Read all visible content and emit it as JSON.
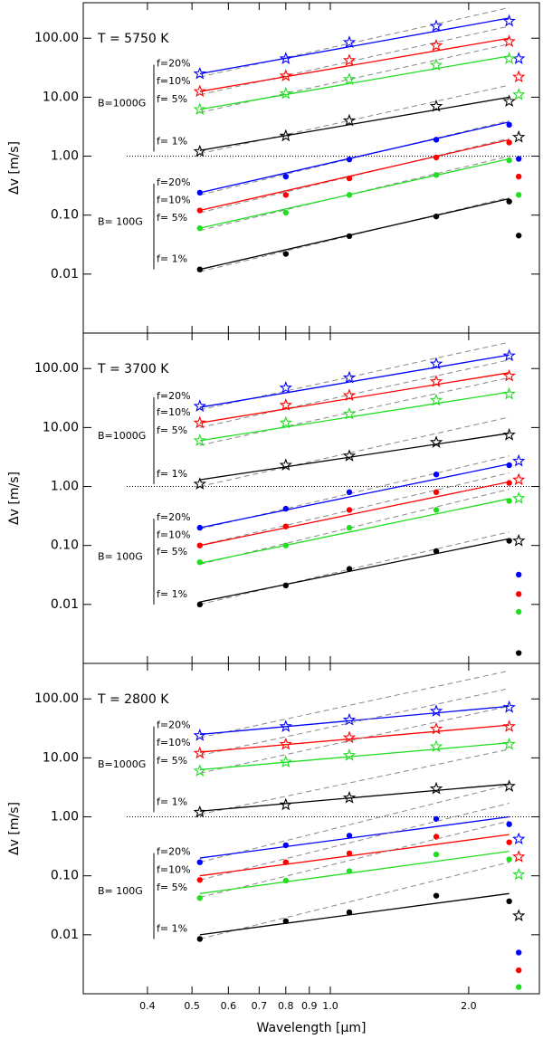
{
  "chart_data": [
    {
      "type": "line",
      "title": "T = 5750 K",
      "ylabel": "Δv [m/s]",
      "xscale": "log",
      "yscale": "log",
      "xlim": [
        0.29,
        2.85
      ],
      "ylim": [
        0.001,
        400
      ],
      "yticks": [
        0.01,
        {
          "value": 0.1,
          "label": "0.10"
        },
        {
          "value": 1,
          "label": "1.00"
        },
        {
          "value": 10,
          "label": "10.00"
        },
        {
          "value": 100,
          "label": "100.00"
        }
      ],
      "x": [
        0.52,
        0.8,
        1.1,
        1.7,
        2.45
      ],
      "extra_x": 2.57,
      "groups": [
        {
          "label": "B=1000G",
          "marker": "star",
          "series": [
            {
              "name": "f=20%",
              "color": "#0000ff",
              "values": [
                25,
                45,
                85,
                160,
                195
              ],
              "fit": [
                25,
                220
              ],
              "dashed": [
                22,
                330
              ],
              "extra": 45
            },
            {
              "name": "f=10%",
              "color": "#ff0000",
              "values": [
                12.5,
                23,
                42,
                75,
                88
              ],
              "fit": [
                12.5,
                100
              ],
              "dashed": [
                11,
                160
              ],
              "extra": 22
            },
            {
              "name": "f= 5%",
              "color": "#22dd22",
              "values": [
                6.2,
                11.5,
                20,
                35,
                45
              ],
              "fit": [
                6.2,
                50
              ],
              "dashed": [
                5.5,
                80
              ],
              "extra": 11
            },
            {
              "name": "f= 1%",
              "color": "#000000",
              "values": [
                1.2,
                2.2,
                4,
                7,
                8.5
              ],
              "fit": [
                1.25,
                10
              ],
              "dashed": [
                1.1,
                16
              ],
              "extra": 2.1
            }
          ]
        },
        {
          "label": "B= 100G",
          "marker": "dot",
          "series": [
            {
              "name": "f=20%",
              "color": "#0000ff",
              "values": [
                0.24,
                0.45,
                0.88,
                1.9,
                3.4
              ],
              "fit": [
                0.24,
                3.8
              ],
              "dashed": [
                0.22,
                4
              ],
              "extra": 0.9
            },
            {
              "name": "f=10%",
              "color": "#ff0000",
              "values": [
                0.12,
                0.22,
                0.42,
                0.95,
                1.7
              ],
              "fit": [
                0.12,
                1.9
              ],
              "dashed": [
                0.11,
                2
              ],
              "extra": 0.45
            },
            {
              "name": "f= 5%",
              "color": "#22dd22",
              "values": [
                0.06,
                0.11,
                0.22,
                0.48,
                0.85
              ],
              "fit": [
                0.06,
                0.9
              ],
              "dashed": [
                0.055,
                1
              ],
              "extra": 0.22
            },
            {
              "name": "f= 1%",
              "color": "#000000",
              "values": [
                0.012,
                0.022,
                0.044,
                0.095,
                0.17
              ],
              "fit": [
                0.012,
                0.19
              ],
              "dashed": [
                0.011,
                0.2
              ],
              "extra": 0.045
            }
          ]
        }
      ]
    },
    {
      "type": "line",
      "title": "T = 3700 K",
      "ylabel": "Δv [m/s]",
      "xscale": "log",
      "yscale": "log",
      "xlim": [
        0.29,
        2.85
      ],
      "ylim": [
        0.001,
        400
      ],
      "yticks": [
        0.01,
        {
          "value": 0.1,
          "label": "0.10"
        },
        {
          "value": 1,
          "label": "1.00"
        },
        {
          "value": 10,
          "label": "10.00"
        },
        {
          "value": 100,
          "label": "100.00"
        }
      ],
      "x": [
        0.52,
        0.8,
        1.1,
        1.7,
        2.45
      ],
      "extra_x": 2.57,
      "groups": [
        {
          "label": "B=1000G",
          "marker": "star",
          "series": [
            {
              "name": "f=20%",
              "color": "#0000ff",
              "values": [
                23,
                47,
                70,
                120,
                165
              ],
              "fit": [
                22,
                170
              ],
              "dashed": [
                20,
                280
              ],
              "extra": 2.7
            },
            {
              "name": "f=10%",
              "color": "#ff0000",
              "values": [
                12,
                24,
                35,
                60,
                75
              ],
              "fit": [
                12,
                85
              ],
              "dashed": [
                10,
                140
              ],
              "extra": 1.3
            },
            {
              "name": "f= 5%",
              "color": "#22dd22",
              "values": [
                6,
                12,
                17,
                29,
                37
              ],
              "fit": [
                6,
                40
              ],
              "dashed": [
                5,
                70
              ],
              "extra": 0.63
            },
            {
              "name": "f= 1%",
              "color": "#000000",
              "values": [
                1.1,
                2.3,
                3.3,
                5.6,
                7.5
              ],
              "fit": [
                1.3,
                8
              ],
              "dashed": [
                1,
                15
              ],
              "extra": 0.12
            }
          ]
        },
        {
          "label": "B= 100G",
          "marker": "dot",
          "series": [
            {
              "name": "f=20%",
              "color": "#0000ff",
              "values": [
                0.2,
                0.42,
                0.8,
                1.6,
                2.3
              ],
              "fit": [
                0.2,
                2.4
              ],
              "dashed": [
                0.19,
                3.3
              ],
              "extra": 0.032
            },
            {
              "name": "f=10%",
              "color": "#ff0000",
              "values": [
                0.1,
                0.21,
                0.4,
                0.8,
                1.15
              ],
              "fit": [
                0.1,
                1.2
              ],
              "dashed": [
                0.1,
                1.7
              ],
              "extra": 0.015
            },
            {
              "name": "f= 5%",
              "color": "#22dd22",
              "values": [
                0.052,
                0.1,
                0.2,
                0.4,
                0.57
              ],
              "fit": [
                0.05,
                0.62
              ],
              "dashed": [
                0.048,
                0.9
              ],
              "extra": 0.0075
            },
            {
              "name": "f= 1%",
              "color": "#000000",
              "values": [
                0.01,
                0.021,
                0.04,
                0.08,
                0.12
              ],
              "fit": [
                0.011,
                0.13
              ],
              "dashed": [
                0.01,
                0.17
              ],
              "extra": 0.0015
            }
          ]
        }
      ]
    },
    {
      "type": "line",
      "title": "T = 2800 K",
      "ylabel": "Δv [m/s]",
      "xlabel": "Wavelength [μm]",
      "xscale": "log",
      "yscale": "log",
      "xlim": [
        0.29,
        2.85
      ],
      "ylim": [
        0.001,
        400
      ],
      "xticks": [
        0.4,
        0.5,
        0.6,
        0.7,
        0.8,
        0.9,
        {
          "value": 1,
          "label": "1.0"
        },
        {
          "value": 2,
          "label": "2.0"
        }
      ],
      "yticks": [
        0.01,
        {
          "value": 0.1,
          "label": "0.10"
        },
        {
          "value": 1,
          "label": "1.00"
        },
        {
          "value": 10,
          "label": "10.00"
        },
        {
          "value": 100,
          "label": "100.00"
        }
      ],
      "x": [
        0.52,
        0.8,
        1.1,
        1.7,
        2.45
      ],
      "extra_x": 2.57,
      "groups": [
        {
          "label": "B=1000G",
          "marker": "star",
          "series": [
            {
              "name": "f=20%",
              "color": "#0000ff",
              "values": [
                24,
                34,
                44,
                62,
                72
              ],
              "fit": [
                25,
                75
              ],
              "dashed": [
                22,
                300
              ],
              "extra": 0.42
            },
            {
              "name": "f=10%",
              "color": "#ff0000",
              "values": [
                12,
                17,
                22,
                31,
                34
              ],
              "fit": [
                12.5,
                36
              ],
              "dashed": [
                11,
                150
              ],
              "extra": 0.21
            },
            {
              "name": "f= 5%",
              "color": "#22dd22",
              "values": [
                6,
                8.5,
                11,
                15.5,
                17
              ],
              "fit": [
                6.3,
                18
              ],
              "dashed": [
                5.5,
                75
              ],
              "extra": 0.105
            },
            {
              "name": "f= 1%",
              "color": "#000000",
              "values": [
                1.2,
                1.6,
                2.1,
                3,
                3.3
              ],
              "fit": [
                1.25,
                3.6
              ],
              "dashed": [
                1.1,
                14
              ],
              "extra": 0.021
            }
          ]
        },
        {
          "label": "B= 100G",
          "marker": "dot",
          "series": [
            {
              "name": "f=20%",
              "color": "#0000ff",
              "values": [
                0.17,
                0.33,
                0.48,
                0.92,
                0.75
              ],
              "fit": [
                0.2,
                1
              ],
              "dashed": [
                0.17,
                3.5
              ],
              "extra": 0.005
            },
            {
              "name": "f=10%",
              "color": "#ff0000",
              "values": [
                0.085,
                0.17,
                0.24,
                0.46,
                0.37
              ],
              "fit": [
                0.1,
                0.5
              ],
              "dashed": [
                0.085,
                1.7
              ],
              "extra": 0.0025
            },
            {
              "name": "f= 5%",
              "color": "#22dd22",
              "values": [
                0.042,
                0.083,
                0.12,
                0.23,
                0.19
              ],
              "fit": [
                0.05,
                0.26
              ],
              "dashed": [
                0.043,
                0.85
              ],
              "extra": 0.0013
            },
            {
              "name": "f= 1%",
              "color": "#000000",
              "values": [
                0.0085,
                0.017,
                0.024,
                0.046,
                0.037
              ],
              "fit": [
                0.01,
                0.05
              ],
              "dashed": [
                0.0085,
                0.17
              ],
              "extra": null
            }
          ]
        }
      ]
    }
  ]
}
